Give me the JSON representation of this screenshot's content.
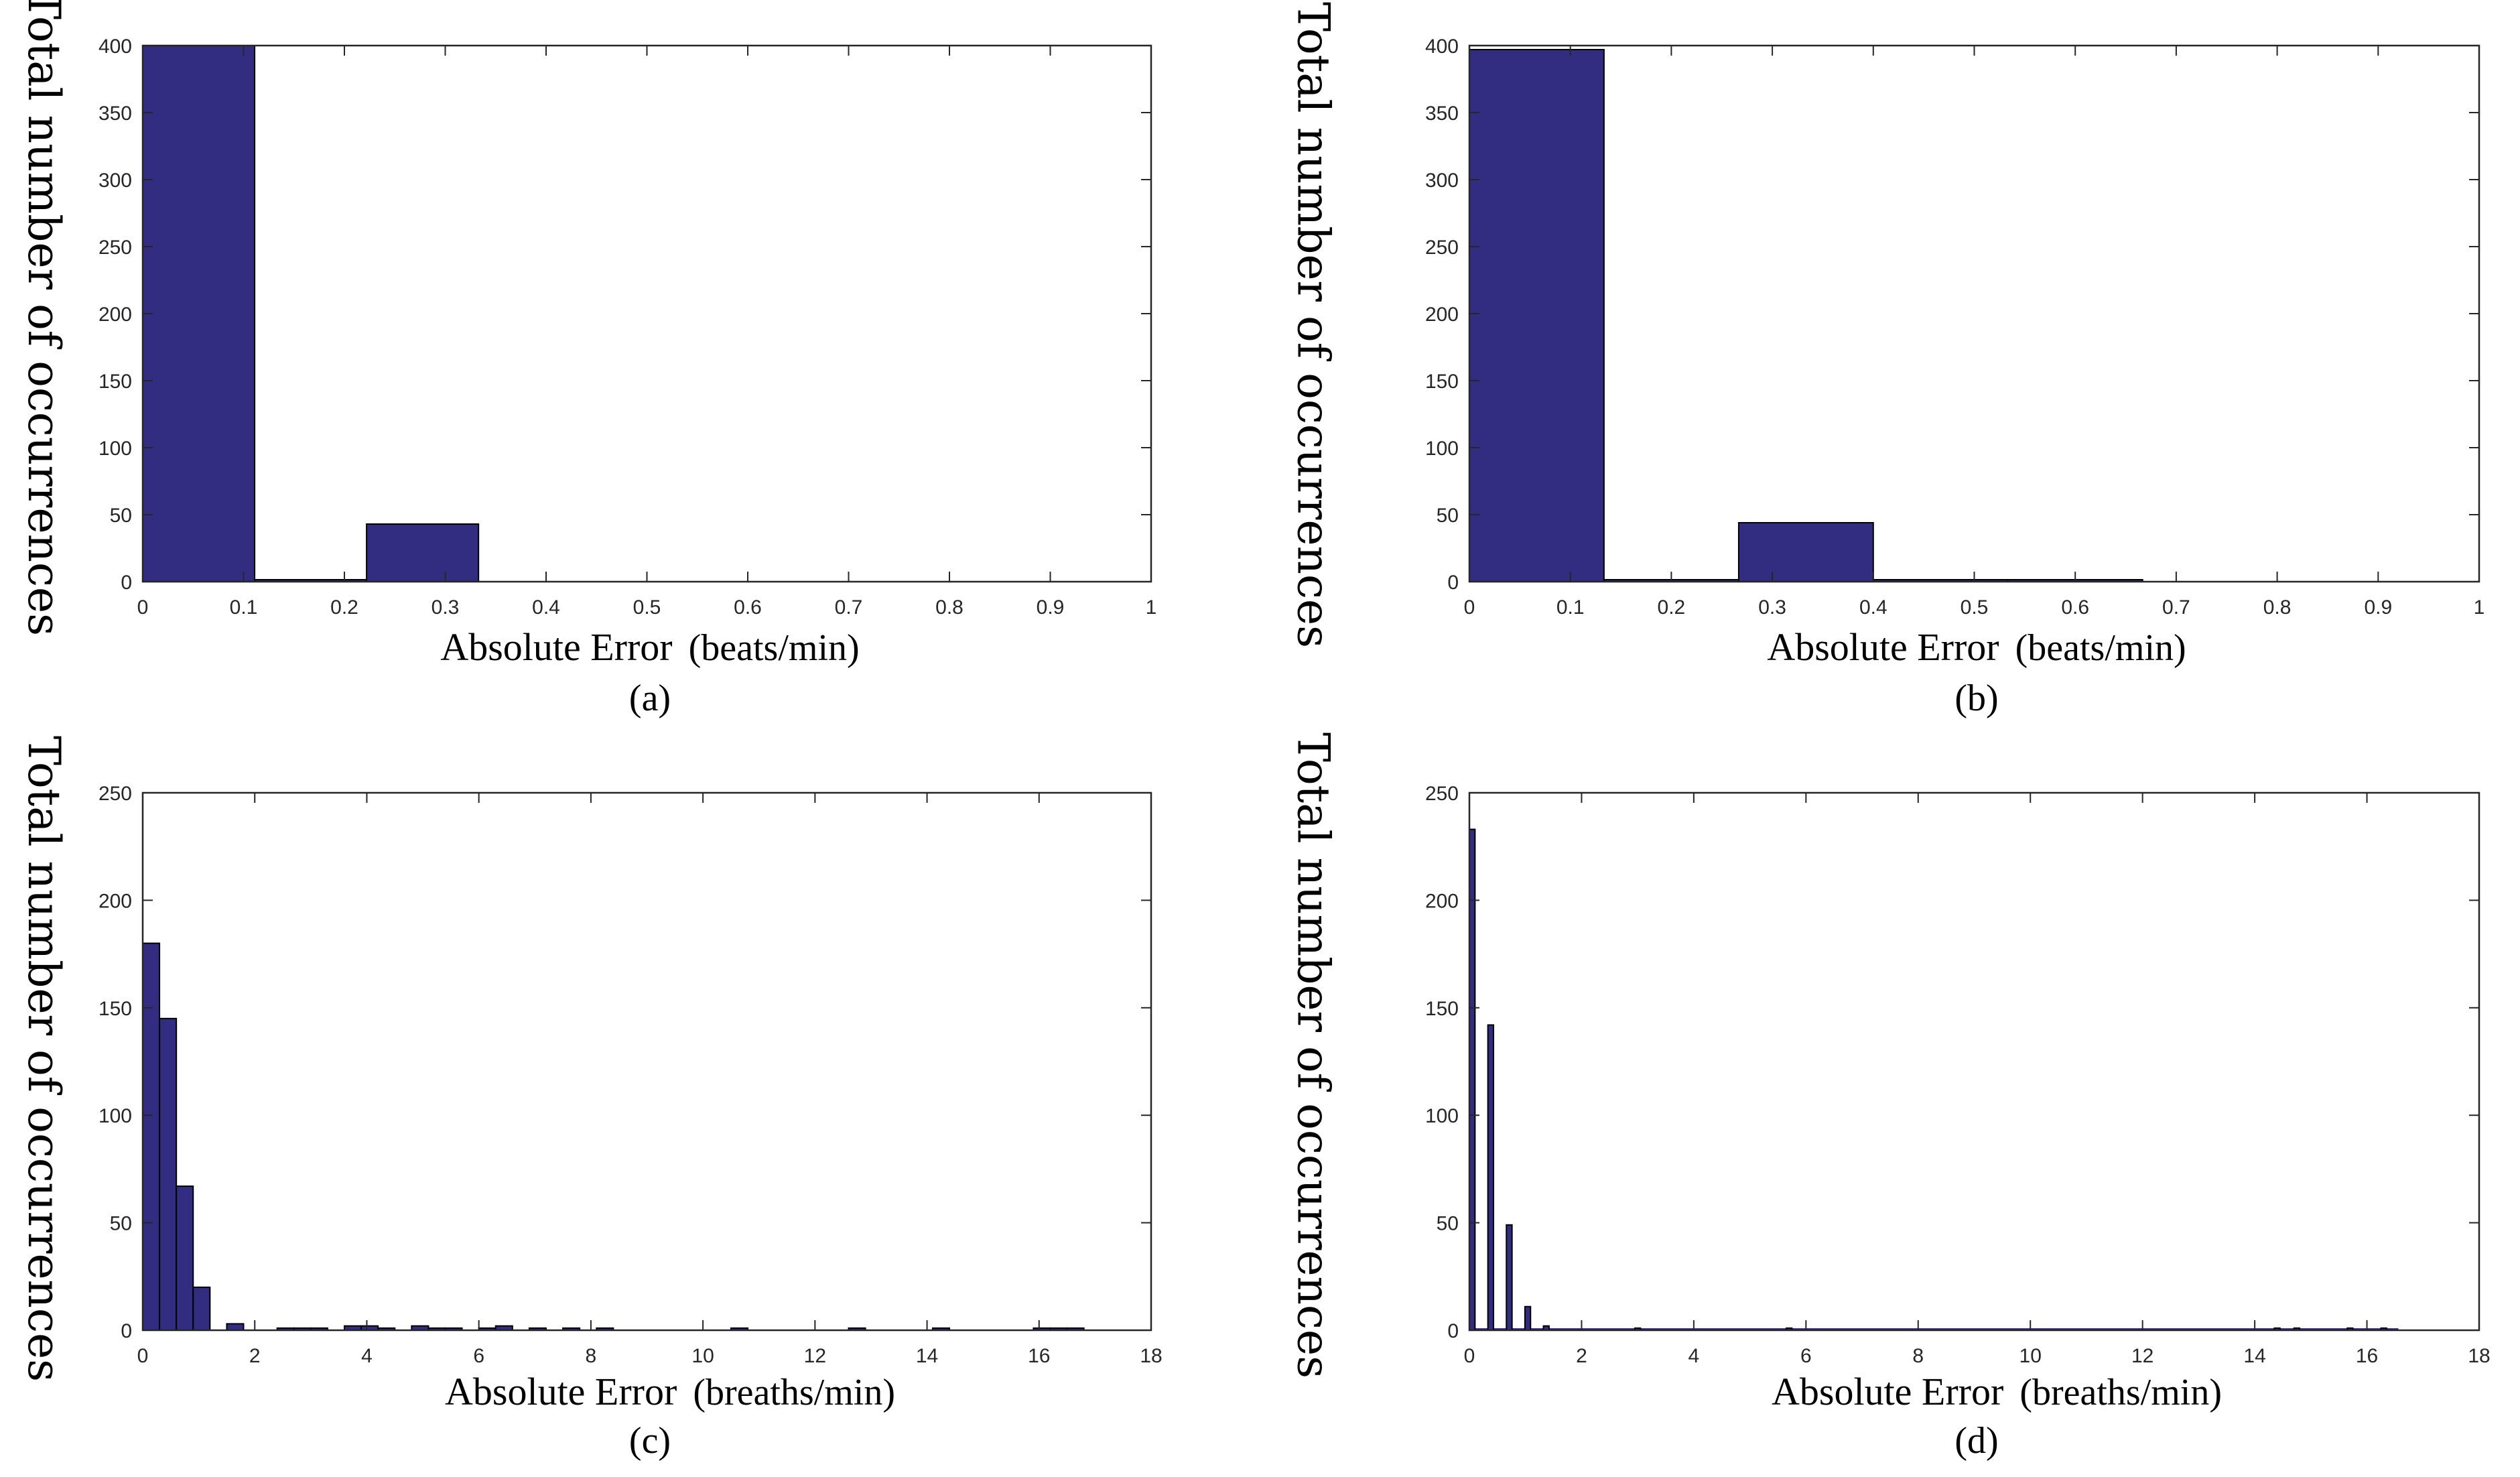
{
  "chart_data": [
    {
      "id": "a",
      "type": "bar",
      "caption": "(a)",
      "xlabel": "Absolute Error",
      "xunit": "(beats/min)",
      "ylabel": "Total number of occurrences",
      "xlim": [
        0,
        1
      ],
      "ylim": [
        0,
        400
      ],
      "xticks": [
        0,
        0.1,
        0.2,
        0.3,
        0.4,
        0.5,
        0.6,
        0.7,
        0.8,
        0.9,
        1
      ],
      "xtick_labels": [
        "0",
        "0.1",
        "0.2",
        "0.3",
        "0.4",
        "0.5",
        "0.6",
        "0.7",
        "0.8",
        "0.9",
        "1"
      ],
      "yticks": [
        0,
        50,
        100,
        150,
        200,
        250,
        300,
        350,
        400
      ],
      "ytick_labels": [
        "0",
        "50",
        "100",
        "150",
        "200",
        "250",
        "300",
        "350",
        "400"
      ],
      "bins": [
        {
          "x0": 0,
          "x1": 0.111,
          "value": 400
        },
        {
          "x0": 0.111,
          "x1": 0.222,
          "value": 1
        },
        {
          "x0": 0.222,
          "x1": 0.333,
          "value": 43
        }
      ]
    },
    {
      "id": "b",
      "type": "bar",
      "caption": "(b)",
      "xlabel": "Absolute Error",
      "xunit": "(beats/min)",
      "ylabel": "Total number of occurrences",
      "xlim": [
        0,
        1
      ],
      "ylim": [
        0,
        400
      ],
      "xticks": [
        0,
        0.1,
        0.2,
        0.3,
        0.4,
        0.5,
        0.6,
        0.7,
        0.8,
        0.9,
        1
      ],
      "xtick_labels": [
        "0",
        "0.1",
        "0.2",
        "0.3",
        "0.4",
        "0.5",
        "0.6",
        "0.7",
        "0.8",
        "0.9",
        "1"
      ],
      "yticks": [
        0,
        50,
        100,
        150,
        200,
        250,
        300,
        350,
        400
      ],
      "ytick_labels": [
        "0",
        "50",
        "100",
        "150",
        "200",
        "250",
        "300",
        "350",
        "400"
      ],
      "bins": [
        {
          "x0": 0,
          "x1": 0.1333,
          "value": 397
        },
        {
          "x0": 0.1333,
          "x1": 0.2667,
          "value": 1
        },
        {
          "x0": 0.2667,
          "x1": 0.4,
          "value": 44
        },
        {
          "x0": 0.4,
          "x1": 0.5333,
          "value": 1
        },
        {
          "x0": 0.5333,
          "x1": 0.6667,
          "value": 1
        }
      ]
    },
    {
      "id": "c",
      "type": "bar",
      "caption": "(c)",
      "xlabel": "Absolute Error",
      "xunit": "(breaths/min)",
      "ylabel": "Total number of occurrences",
      "xlim": [
        0,
        18
      ],
      "ylim": [
        0,
        250
      ],
      "xticks": [
        0,
        2,
        4,
        6,
        8,
        10,
        12,
        14,
        16,
        18
      ],
      "xtick_labels": [
        "0",
        "2",
        "4",
        "6",
        "8",
        "10",
        "12",
        "14",
        "16",
        "18"
      ],
      "yticks": [
        0,
        50,
        100,
        150,
        200,
        250
      ],
      "ytick_labels": [
        "0",
        "50",
        "100",
        "150",
        "200",
        "250"
      ],
      "bins": [
        {
          "x0": 0.0,
          "x1": 0.3,
          "value": 180
        },
        {
          "x0": 0.3,
          "x1": 0.6,
          "value": 145
        },
        {
          "x0": 0.6,
          "x1": 0.9,
          "value": 67
        },
        {
          "x0": 0.9,
          "x1": 1.2,
          "value": 20
        },
        {
          "x0": 1.2,
          "x1": 1.5,
          "value": 0
        },
        {
          "x0": 1.5,
          "x1": 1.8,
          "value": 3
        },
        {
          "x0": 1.8,
          "x1": 2.1,
          "value": 0
        },
        {
          "x0": 2.1,
          "x1": 2.4,
          "value": 0
        },
        {
          "x0": 2.4,
          "x1": 2.7,
          "value": 1
        },
        {
          "x0": 2.7,
          "x1": 3.0,
          "value": 1
        },
        {
          "x0": 3.0,
          "x1": 3.3,
          "value": 1
        },
        {
          "x0": 3.3,
          "x1": 3.6,
          "value": 0
        },
        {
          "x0": 3.6,
          "x1": 3.9,
          "value": 2
        },
        {
          "x0": 3.9,
          "x1": 4.2,
          "value": 2
        },
        {
          "x0": 4.2,
          "x1": 4.5,
          "value": 1
        },
        {
          "x0": 4.5,
          "x1": 4.8,
          "value": 0
        },
        {
          "x0": 4.8,
          "x1": 5.1,
          "value": 2
        },
        {
          "x0": 5.1,
          "x1": 5.4,
          "value": 1
        },
        {
          "x0": 5.4,
          "x1": 5.7,
          "value": 1
        },
        {
          "x0": 5.7,
          "x1": 6.0,
          "value": 0
        },
        {
          "x0": 6.0,
          "x1": 6.3,
          "value": 1
        },
        {
          "x0": 6.3,
          "x1": 6.6,
          "value": 2
        },
        {
          "x0": 6.6,
          "x1": 6.9,
          "value": 0
        },
        {
          "x0": 6.9,
          "x1": 7.2,
          "value": 1
        },
        {
          "x0": 7.2,
          "x1": 7.5,
          "value": 0
        },
        {
          "x0": 7.5,
          "x1": 7.8,
          "value": 1
        },
        {
          "x0": 7.8,
          "x1": 8.1,
          "value": 0
        },
        {
          "x0": 8.1,
          "x1": 8.4,
          "value": 1
        },
        {
          "x0": 10.5,
          "x1": 10.8,
          "value": 1
        },
        {
          "x0": 12.6,
          "x1": 12.9,
          "value": 1
        },
        {
          "x0": 14.1,
          "x1": 14.4,
          "value": 1
        },
        {
          "x0": 15.9,
          "x1": 16.2,
          "value": 1
        },
        {
          "x0": 16.2,
          "x1": 16.5,
          "value": 1
        },
        {
          "x0": 16.5,
          "x1": 16.8,
          "value": 1
        }
      ]
    },
    {
      "id": "d",
      "type": "bar",
      "caption": "(d)",
      "xlabel": "Absolute Error",
      "xunit": "(breaths/min)",
      "ylabel": "Total number of occurrences",
      "xlim": [
        0,
        18
      ],
      "ylim": [
        0,
        250
      ],
      "xticks": [
        0,
        2,
        4,
        6,
        8,
        10,
        12,
        14,
        16,
        18
      ],
      "xtick_labels": [
        "0",
        "2",
        "4",
        "6",
        "8",
        "10",
        "12",
        "14",
        "16",
        "18"
      ],
      "yticks": [
        0,
        50,
        100,
        150,
        200,
        250
      ],
      "ytick_labels": [
        "0",
        "50",
        "100",
        "150",
        "200",
        "250"
      ],
      "bins": [
        {
          "x0": 0.0,
          "x1": 0.1,
          "value": 233
        },
        {
          "x0": 0.33,
          "x1": 0.43,
          "value": 142
        },
        {
          "x0": 0.66,
          "x1": 0.76,
          "value": 49
        },
        {
          "x0": 0.99,
          "x1": 1.09,
          "value": 11
        },
        {
          "x0": 1.32,
          "x1": 1.42,
          "value": 2
        },
        {
          "x0": 2.95,
          "x1": 3.05,
          "value": 1
        },
        {
          "x0": 5.65,
          "x1": 5.75,
          "value": 1
        },
        {
          "x0": 14.35,
          "x1": 14.45,
          "value": 1
        },
        {
          "x0": 14.7,
          "x1": 14.8,
          "value": 1
        },
        {
          "x0": 15.65,
          "x1": 15.75,
          "value": 1
        },
        {
          "x0": 16.25,
          "x1": 16.35,
          "value": 1
        }
      ],
      "baseline_fill": true
    }
  ],
  "colors": {
    "bar_fill": "#332d82",
    "bar_edge": "#000000",
    "axis": "#262626",
    "tick_text": "#262626"
  }
}
